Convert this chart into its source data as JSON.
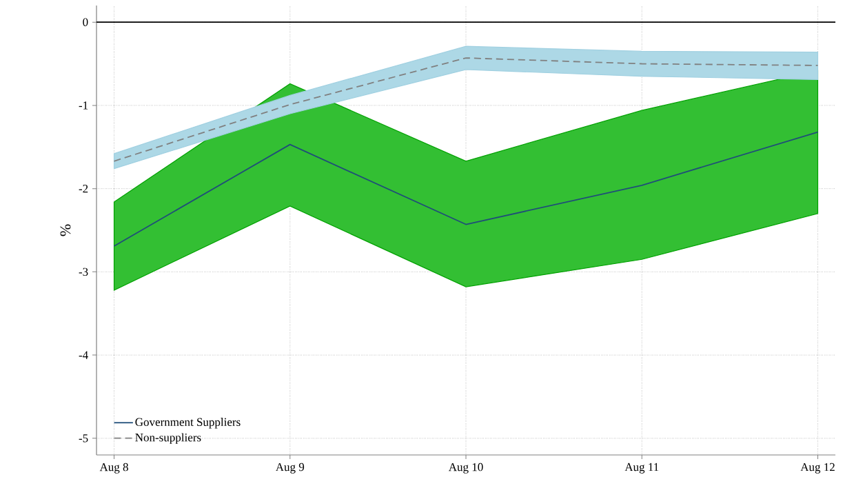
{
  "chart_data": {
    "type": "line",
    "ylabel": "%",
    "categories": [
      "Aug 8",
      "Aug 9",
      "Aug 10",
      "Aug 11",
      "Aug 12"
    ],
    "series": [
      {
        "name": "Government Suppliers",
        "color": "#1f4e79",
        "line_style": "solid",
        "values": [
          -2.69,
          -1.47,
          -2.43,
          -1.96,
          -1.32
        ],
        "lower": [
          -3.22,
          -2.21,
          -3.18,
          -2.85,
          -2.3
        ],
        "upper": [
          -2.16,
          -0.74,
          -1.67,
          -1.06,
          -0.58
        ]
      },
      {
        "name": "Non-suppliers",
        "color": "#808080",
        "line_style": "dashed",
        "values": [
          -1.67,
          -0.99,
          -0.43,
          -0.5,
          -0.52
        ],
        "lower": [
          -1.76,
          -1.1,
          -0.57,
          -0.65,
          -0.69
        ],
        "upper": [
          -1.58,
          -0.88,
          -0.29,
          -0.35,
          -0.36
        ]
      }
    ],
    "ylim": [
      -5.2,
      0.2
    ],
    "yticks": [
      -5,
      -4,
      -3,
      -2,
      -1,
      0
    ],
    "ref_lines": [
      {
        "axis": "y",
        "value": 0,
        "color": "#000000"
      }
    ],
    "grid": true,
    "legend": "bottom left",
    "marker": "none"
  }
}
